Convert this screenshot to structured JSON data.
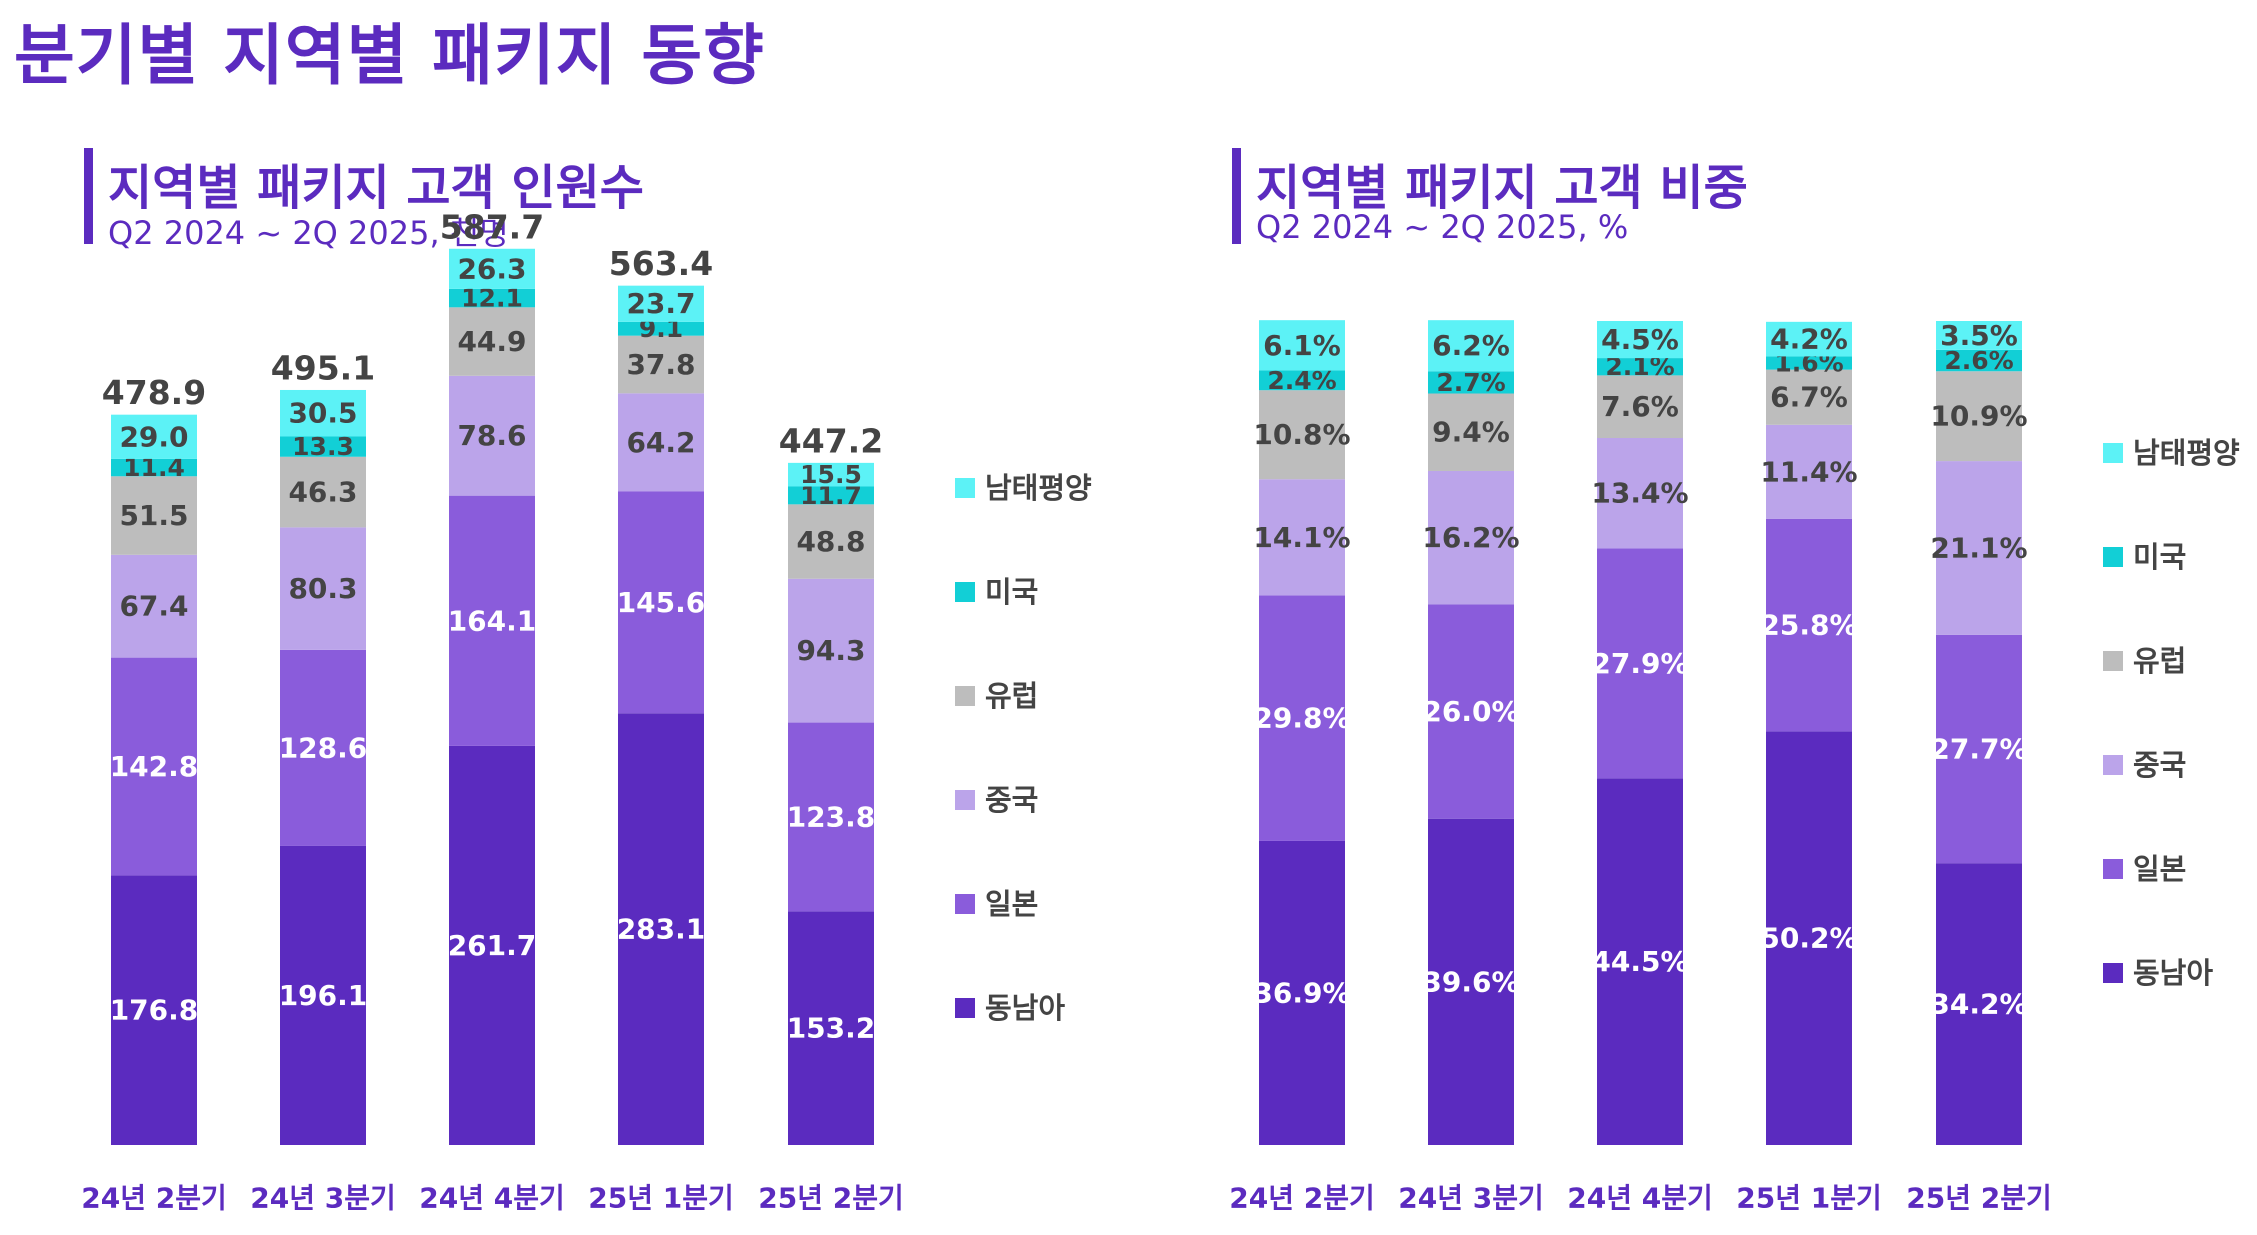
{
  "page": {
    "title": "분기별 지역별 패키지 동향"
  },
  "colors": {
    "동남아": "#5b2bbf",
    "일본": "#8a5cdb",
    "중국": "#bba4ea",
    "유럽": "#bdbdbd",
    "미국": "#12cfd6",
    "남태평양": "#5cf2f6",
    "accent": "#5b2bbf",
    "axis_label": "#5b2bbf",
    "dark_label": "#444444",
    "light_label": "#ffffff"
  },
  "legend_order": [
    "남태평양",
    "미국",
    "유럽",
    "중국",
    "일본",
    "동남아"
  ],
  "panels": {
    "count": {
      "title": "지역별 패키지 고객 인원수",
      "subtitle": "Q2 2024 ~ 2Q 2025, 천명"
    },
    "share": {
      "title": "지역별 패키지 고객 비중",
      "subtitle": "Q2 2024 ~ 2Q 2025, %"
    }
  },
  "chart_data": [
    {
      "type": "bar",
      "stacked": true,
      "title": "지역별 패키지 고객 인원수",
      "subtitle": "Q2 2024 ~ 2Q 2025, 천명",
      "categories": [
        "24년 2분기",
        "24년 3분기",
        "24년 4분기",
        "25년 1분기",
        "25년 2분기"
      ],
      "ylim": [
        0,
        600
      ],
      "grid": false,
      "legend_position": "right",
      "totals": [
        478.9,
        495.1,
        587.7,
        563.4,
        447.2
      ],
      "total_labels": [
        "478.9",
        "495.1",
        "587.7",
        "563.4",
        "447.2"
      ],
      "series": [
        {
          "name": "동남아",
          "values": [
            176.8,
            196.1,
            261.7,
            283.1,
            153.2
          ],
          "labels": [
            "176.8",
            "196.1",
            "261.7",
            "283.1",
            "153.2"
          ]
        },
        {
          "name": "일본",
          "values": [
            142.8,
            128.6,
            164.1,
            145.6,
            123.8
          ],
          "labels": [
            "142.8",
            "128.6",
            "164.1",
            "145.6",
            "123.8"
          ]
        },
        {
          "name": "중국",
          "values": [
            67.4,
            80.3,
            78.6,
            64.2,
            94.3
          ],
          "labels": [
            "67.4",
            "80.3",
            "78.6",
            "64.2",
            "94.3"
          ]
        },
        {
          "name": "유럽",
          "values": [
            51.5,
            46.3,
            44.9,
            37.8,
            48.8
          ],
          "labels": [
            "51.5",
            "46.3",
            "44.9",
            "37.8",
            "48.8"
          ]
        },
        {
          "name": "미국",
          "values": [
            11.4,
            13.3,
            12.1,
            9.1,
            11.7
          ],
          "labels": [
            "11.4",
            "13.3",
            "12.1",
            "9.1",
            "11.7"
          ]
        },
        {
          "name": "남태평양",
          "values": [
            29.0,
            30.5,
            26.3,
            23.7,
            15.5
          ],
          "labels": [
            "29.0",
            "30.5",
            "26.3",
            "23.7",
            "15.5"
          ]
        }
      ]
    },
    {
      "type": "bar",
      "stacked": true,
      "title": "지역별 패키지 고객 비중",
      "subtitle": "Q2 2024 ~ 2Q 2025, %",
      "categories": [
        "24년 2분기",
        "24년 3분기",
        "24년 4분기",
        "25년 1분기",
        "25년 2분기"
      ],
      "ylim": [
        0,
        100
      ],
      "grid": false,
      "legend_position": "right",
      "series": [
        {
          "name": "동남아",
          "values": [
            36.9,
            39.6,
            44.5,
            50.2,
            34.2
          ],
          "labels": [
            "36.9%",
            "39.6%",
            "44.5%",
            "50.2%",
            "34.2%"
          ]
        },
        {
          "name": "일본",
          "values": [
            29.8,
            26.0,
            27.9,
            25.8,
            27.7
          ],
          "labels": [
            "29.8%",
            "26.0%",
            "27.9%",
            "25.8%",
            "27.7%"
          ]
        },
        {
          "name": "중국",
          "values": [
            14.1,
            16.2,
            13.4,
            11.4,
            21.1
          ],
          "labels": [
            "14.1%",
            "16.2%",
            "13.4%",
            "11.4%",
            "21.1%"
          ]
        },
        {
          "name": "유럽",
          "values": [
            10.8,
            9.4,
            7.6,
            6.7,
            10.9
          ],
          "labels": [
            "10.8%",
            "9.4%",
            "7.6%",
            "6.7%",
            "10.9%"
          ]
        },
        {
          "name": "미국",
          "values": [
            2.4,
            2.7,
            2.1,
            1.6,
            2.6
          ],
          "labels": [
            "2.4%",
            "2.7%",
            "2.1%",
            "1.6%",
            "2.6%"
          ]
        },
        {
          "name": "남태평양",
          "values": [
            6.1,
            6.2,
            4.5,
            4.2,
            3.5
          ],
          "labels": [
            "6.1%",
            "6.2%",
            "4.5%",
            "4.2%",
            "3.5%"
          ]
        }
      ]
    }
  ]
}
